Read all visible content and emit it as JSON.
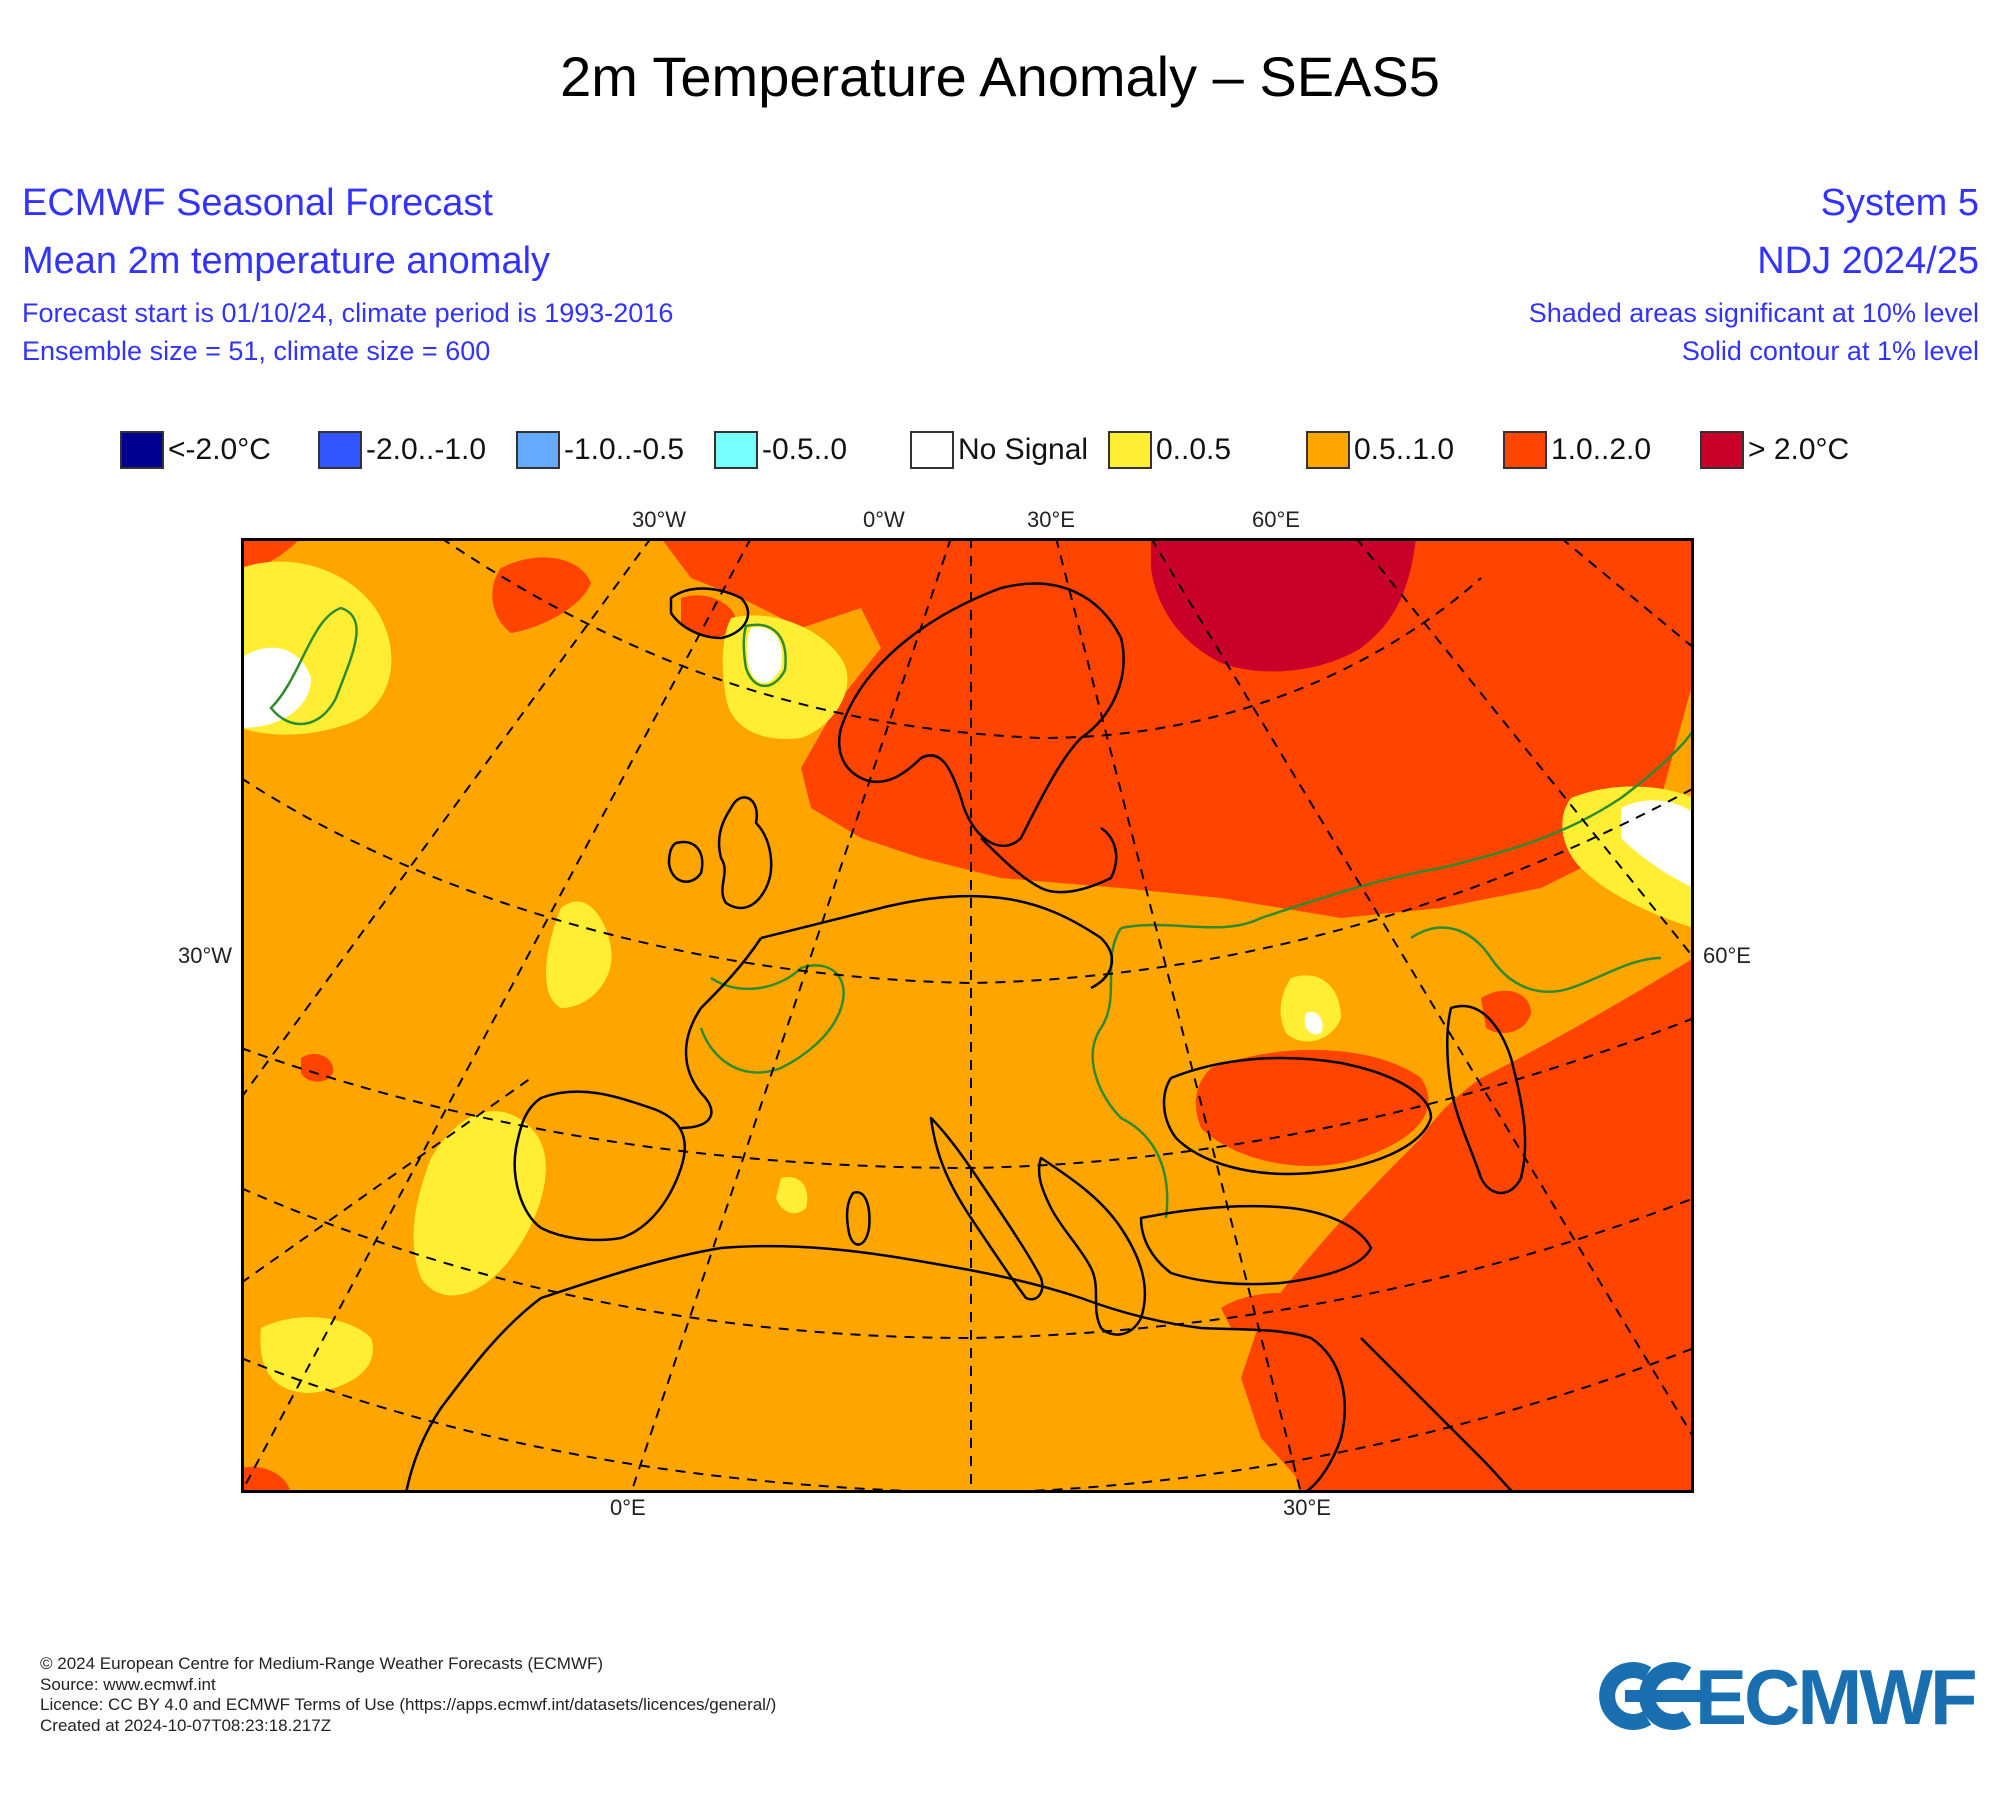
{
  "title": "2m Temperature Anomaly – SEAS5",
  "header_left": {
    "line1": "ECMWF Seasonal Forecast",
    "line2": "Mean 2m temperature anomaly",
    "line3": "Forecast start is 01/10/24, climate period is 1993-2016",
    "line4": "Ensemble size = 51, climate size = 600"
  },
  "header_right": {
    "line1": "System 5",
    "line2": "NDJ 2024/25",
    "line3": "Shaded areas significant at 10% level",
    "line4": "Solid contour at 1% level"
  },
  "legend": [
    {
      "label": "<-2.0°C",
      "color": "#000090"
    },
    {
      "label": "-2.0..-1.0",
      "color": "#3355ff"
    },
    {
      "label": "-1.0..-0.5",
      "color": "#66aaff"
    },
    {
      "label": "-0.5..0",
      "color": "#77ffff"
    },
    {
      "label": "No Signal",
      "color": "#ffffff"
    },
    {
      "label": "0..0.5",
      "color": "#ffee33"
    },
    {
      "label": "0.5..1.0",
      "color": "#ffa500"
    },
    {
      "label": "1.0..2.0",
      "color": "#ff4400"
    },
    {
      "label": "> 2.0°C",
      "color": "#c8002a"
    }
  ],
  "map_labels": {
    "top": [
      "30°W",
      "0°W",
      "30°E",
      "60°E"
    ],
    "left": "30°W",
    "right": "60°E",
    "bottom": [
      "0°E",
      "30°E"
    ]
  },
  "footer": {
    "copyright": "© 2024 European Centre for Medium-Range Weather Forecasts (ECMWF)",
    "source": "Source: www.ecmwf.int",
    "licence": "Licence: CC BY 4.0 and ECMWF Terms of Use (https://apps.ecmwf.int/datasets/licences/general/)",
    "created": "Created at 2024-10-07T08:23:18.217Z"
  },
  "logo_text": "ECMWF",
  "colors": {
    "base_anomaly": "#ffa500",
    "warm_anomaly": "#ff4400",
    "strong_anomaly": "#c8002a",
    "weak_anomaly": "#ffee33",
    "significance_contour": "#2e8b2e",
    "header_text": "#3333ff",
    "logo": "#1a6fb0"
  }
}
